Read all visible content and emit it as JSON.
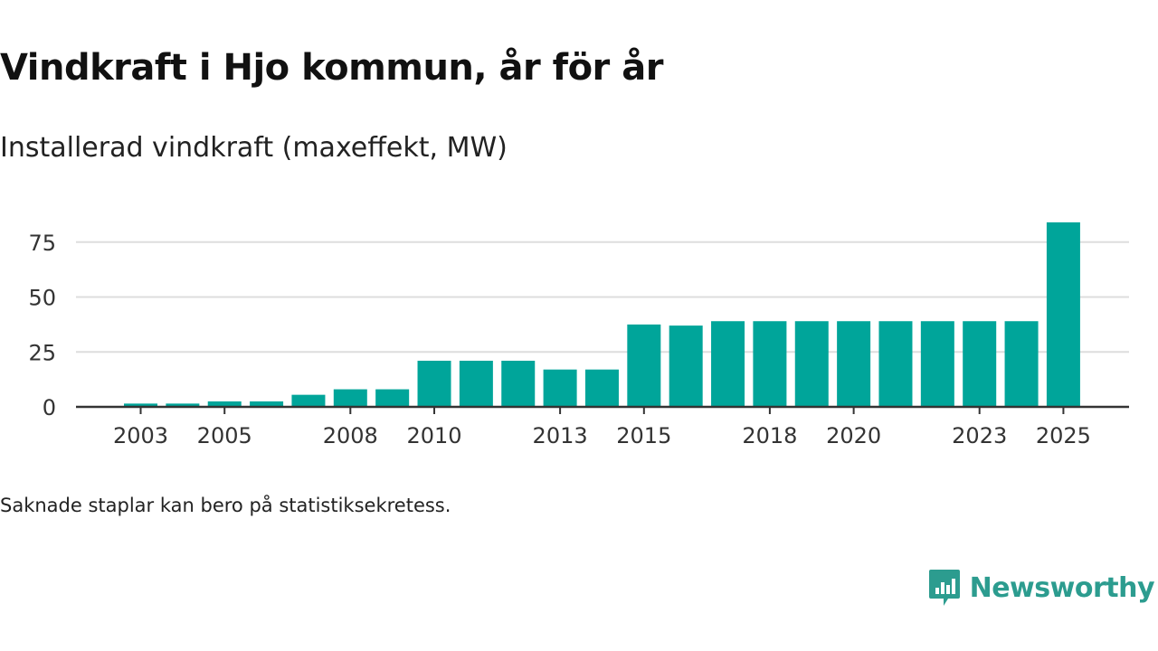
{
  "header": {
    "title": "Vindkraft i Hjo kommun, år för år",
    "subtitle": "Installerad vindkraft (maxeffekt, MW)"
  },
  "footer": {
    "note": "Saknade staplar kan bero på statistiksekretess.",
    "brand": "Newsworthy"
  },
  "colors": {
    "bar": "#00a59a",
    "grid": "#dddddd",
    "axis": "#333333",
    "brand": "#2c9c8f"
  },
  "chart_data": {
    "type": "bar",
    "title": "Vindkraft i Hjo kommun, år för år",
    "subtitle": "Installerad vindkraft (maxeffekt, MW)",
    "xlabel": "",
    "ylabel": "",
    "categories": [
      "2003",
      "2004",
      "2005",
      "2006",
      "2007",
      "2008",
      "2009",
      "2010",
      "2011",
      "2012",
      "2013",
      "2014",
      "2015",
      "2016",
      "2017",
      "2018",
      "2019",
      "2020",
      "2021",
      "2022",
      "2023",
      "2024",
      "2025"
    ],
    "values": [
      1.5,
      1.5,
      2.5,
      2.5,
      5.5,
      8,
      8,
      21,
      21,
      21,
      17,
      17,
      37.5,
      37,
      39,
      39,
      39,
      39,
      39,
      39,
      39,
      39,
      84
    ],
    "xtick_labels": [
      "2003",
      "2005",
      "2008",
      "2010",
      "2013",
      "2015",
      "2018",
      "2020",
      "2023",
      "2025"
    ],
    "yticks": [
      0,
      25,
      50,
      75
    ],
    "ylim": [
      0,
      88
    ],
    "grid": true,
    "legend": "none"
  }
}
